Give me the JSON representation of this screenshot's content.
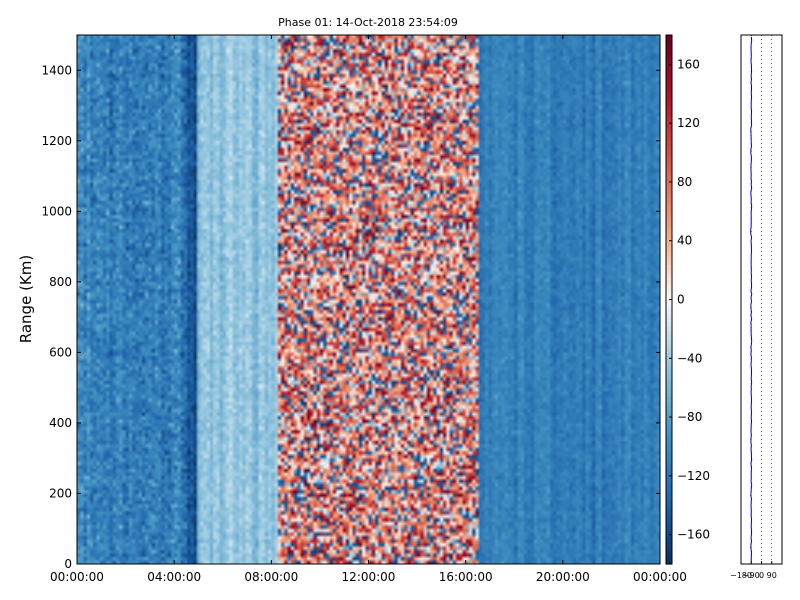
{
  "chart_data": [
    {
      "type": "heatmap",
      "title": "Phase 01: 14-Oct-2018 23:54:09",
      "xlabel": "",
      "ylabel": "Range (Km)",
      "xlim": [
        "00:00:00",
        "24:00:00"
      ],
      "ylim": [
        0,
        1500
      ],
      "x_ticks": [
        "00:00:00",
        "04:00:00",
        "08:00:00",
        "12:00:00",
        "16:00:00",
        "20:00:00",
        "00:00:00"
      ],
      "y_ticks": [
        "0",
        "200",
        "400",
        "600",
        "800",
        "1000",
        "1200",
        "1400"
      ],
      "colorbar": {
        "colormap": "RdBu_r",
        "range": [
          -180,
          180
        ],
        "ticks": [
          "−160",
          "−120",
          "−80",
          "−40",
          "0",
          "40",
          "80",
          "120",
          "160"
        ],
        "tick_values": [
          -160,
          -120,
          -80,
          -40,
          0,
          40,
          80,
          120,
          160
        ]
      },
      "regions": [
        {
          "from_hour": 0,
          "to_hour": 4.6,
          "approx_phase": -110,
          "texture": "speckled"
        },
        {
          "from_hour": 4.6,
          "to_hour": 5.0,
          "approx_phase": -150,
          "texture": "band"
        },
        {
          "from_hour": 5.0,
          "to_hour": 8.3,
          "approx_phase": -45,
          "texture": "smooth"
        },
        {
          "from_hour": 8.3,
          "to_hour": 16.5,
          "approx_phase": 60,
          "texture": "noisy"
        },
        {
          "from_hour": 16.5,
          "to_hour": 24,
          "approx_phase": -110,
          "texture": "smooth"
        }
      ]
    },
    {
      "type": "line",
      "title": "",
      "xlim": [
        -180,
        180
      ],
      "x_ticks": [
        "−180",
        "−90",
        "0",
        "90"
      ],
      "ylim": [
        0,
        1500
      ],
      "grid": "vertical dotted",
      "series": [
        {
          "color": "#0000cc",
          "approx_mean": -90
        }
      ]
    }
  ]
}
